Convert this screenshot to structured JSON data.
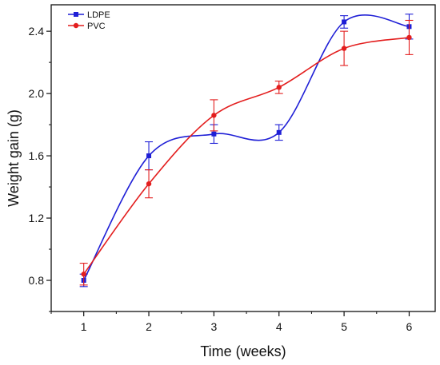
{
  "chart_data": {
    "type": "line",
    "xlabel": "Time (weeks)",
    "ylabel": "Weight gain (g)",
    "x": [
      1,
      2,
      3,
      4,
      5,
      6
    ],
    "xlim": [
      0.5,
      6.4
    ],
    "ylim": [
      0.6,
      2.57
    ],
    "xticks": [
      1,
      2,
      3,
      4,
      5,
      6
    ],
    "yticks": [
      0.8,
      1.2,
      1.6,
      2.0,
      2.4
    ],
    "ytick_labels": [
      "0.8",
      "1.2",
      "1.6",
      "2.0",
      "2.4"
    ],
    "grid": false,
    "legend_position": "top-left",
    "series": [
      {
        "name": "LDPE",
        "color": "#1f1fd6",
        "marker": "square",
        "values": [
          0.8,
          1.6,
          1.74,
          1.75,
          2.46,
          2.43
        ],
        "errors": [
          0.04,
          0.09,
          0.06,
          0.05,
          0.04,
          0.08
        ]
      },
      {
        "name": "PVC",
        "color": "#e31e1e",
        "marker": "circle",
        "values": [
          0.84,
          1.42,
          1.86,
          2.04,
          2.29,
          2.36
        ],
        "errors": [
          0.07,
          0.09,
          0.1,
          0.04,
          0.11,
          0.11
        ]
      }
    ]
  }
}
